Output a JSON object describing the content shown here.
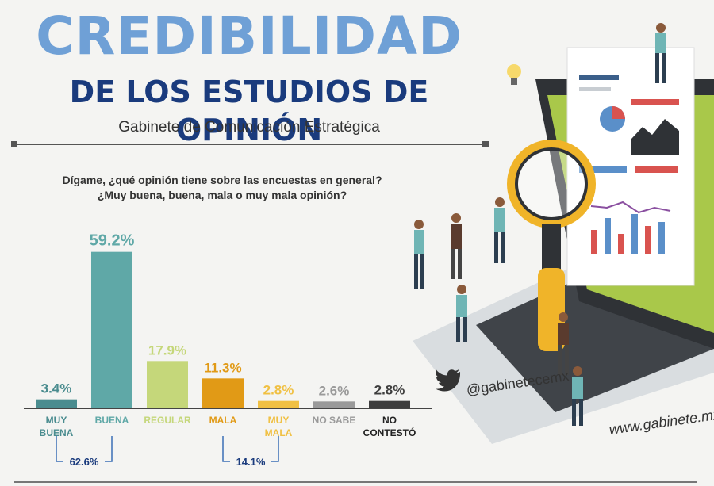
{
  "header": {
    "title": "CREDIBILIDAD",
    "subtitle": "DE LOS ESTUDIOS DE OPINIÓN",
    "organization": "Gabinete de Comunicación Estratégica"
  },
  "question": {
    "line1": "Dígame, ¿qué opinión tiene sobre las encuestas en general?",
    "line2": "¿Muy buena, buena, mala o muy mala opinión?"
  },
  "social": {
    "handle": "@gabinetecemx",
    "website": "www.gabinete.mx",
    "icon": "twitter-bird-icon"
  },
  "chart_data": {
    "type": "bar",
    "categories": [
      [
        "MUY",
        "BUENA"
      ],
      [
        "BUENA"
      ],
      [
        "REGULAR"
      ],
      [
        "MALA"
      ],
      [
        "MUY",
        "MALA"
      ],
      [
        "NO SABE"
      ],
      [
        "NO",
        "CONTESTÓ"
      ]
    ],
    "values": [
      3.4,
      59.2,
      17.9,
      11.3,
      2.8,
      2.6,
      2.8
    ],
    "value_labels": [
      "3.4%",
      "59.2%",
      "17.9%",
      "11.3%",
      "2.8%",
      "2.6%",
      "2.8%"
    ],
    "colors": [
      "#4a8c8f",
      "#5fa8a7",
      "#c5d77a",
      "#e19a16",
      "#f0c043",
      "#9a9a9a",
      "#3e3e3e"
    ],
    "ylim": [
      0,
      60
    ],
    "groups": [
      {
        "label": "62.6%",
        "from": 0,
        "to": 1
      },
      {
        "label": "14.1%",
        "from": 3,
        "to": 4
      }
    ]
  }
}
